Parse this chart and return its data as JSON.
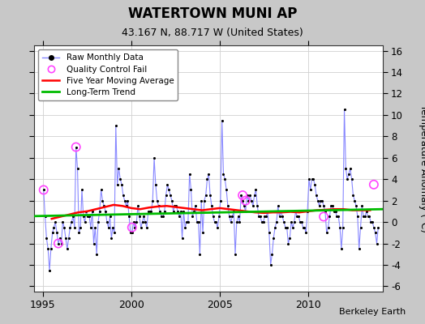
{
  "title": "WATERTOWN MUNI AP",
  "subtitle": "43.167 N, 88.717 W (United States)",
  "ylabel": "Temperature Anomaly (°C)",
  "credit": "Berkeley Earth",
  "xlim": [
    1994.5,
    2014.2
  ],
  "ylim": [
    -6.5,
    16.5
  ],
  "ytick_vals": [
    -6,
    -4,
    -2,
    0,
    2,
    4,
    6,
    8,
    10,
    12,
    14,
    16
  ],
  "xtick_vals": [
    1995,
    2000,
    2005,
    2010
  ],
  "bg_color": "#c8c8c8",
  "plot_bg_color": "#ffffff",
  "grid_color": "#d0d0d0",
  "raw_line_color": "#8888ff",
  "raw_dot_color": "#000000",
  "ma_color": "#ff0000",
  "trend_color": "#00bb00",
  "qc_fail_color": "#ff44ff",
  "raw_data_dates": [
    1995.042,
    1995.125,
    1995.208,
    1995.292,
    1995.375,
    1995.458,
    1995.542,
    1995.625,
    1995.708,
    1995.792,
    1995.875,
    1995.958,
    1996.042,
    1996.125,
    1996.208,
    1996.292,
    1996.375,
    1996.458,
    1996.542,
    1996.625,
    1996.708,
    1996.792,
    1996.875,
    1996.958,
    1997.042,
    1997.125,
    1997.208,
    1997.292,
    1997.375,
    1997.458,
    1997.542,
    1997.625,
    1997.708,
    1997.792,
    1997.875,
    1997.958,
    1998.042,
    1998.125,
    1998.208,
    1998.292,
    1998.375,
    1998.458,
    1998.542,
    1998.625,
    1998.708,
    1998.792,
    1998.875,
    1998.958,
    1999.042,
    1999.125,
    1999.208,
    1999.292,
    1999.375,
    1999.458,
    1999.542,
    1999.625,
    1999.708,
    1999.792,
    1999.875,
    1999.958,
    2000.042,
    2000.125,
    2000.208,
    2000.292,
    2000.375,
    2000.458,
    2000.542,
    2000.625,
    2000.708,
    2000.792,
    2000.875,
    2000.958,
    2001.042,
    2001.125,
    2001.208,
    2001.292,
    2001.375,
    2001.458,
    2001.542,
    2001.625,
    2001.708,
    2001.792,
    2001.875,
    2001.958,
    2002.042,
    2002.125,
    2002.208,
    2002.292,
    2002.375,
    2002.458,
    2002.542,
    2002.625,
    2002.708,
    2002.792,
    2002.875,
    2002.958,
    2003.042,
    2003.125,
    2003.208,
    2003.292,
    2003.375,
    2003.458,
    2003.542,
    2003.625,
    2003.708,
    2003.792,
    2003.875,
    2003.958,
    2004.042,
    2004.125,
    2004.208,
    2004.292,
    2004.375,
    2004.458,
    2004.542,
    2004.625,
    2004.708,
    2004.792,
    2004.875,
    2004.958,
    2005.042,
    2005.125,
    2005.208,
    2005.292,
    2005.375,
    2005.458,
    2005.542,
    2005.625,
    2005.708,
    2005.792,
    2005.875,
    2005.958,
    2006.042,
    2006.125,
    2006.208,
    2006.292,
    2006.375,
    2006.458,
    2006.542,
    2006.625,
    2006.708,
    2006.792,
    2006.875,
    2006.958,
    2007.042,
    2007.125,
    2007.208,
    2007.292,
    2007.375,
    2007.458,
    2007.542,
    2007.625,
    2007.708,
    2007.792,
    2007.875,
    2007.958,
    2008.042,
    2008.125,
    2008.208,
    2008.292,
    2008.375,
    2008.458,
    2008.542,
    2008.625,
    2008.708,
    2008.792,
    2008.875,
    2008.958,
    2009.042,
    2009.125,
    2009.208,
    2009.292,
    2009.375,
    2009.458,
    2009.542,
    2009.625,
    2009.708,
    2009.792,
    2009.875,
    2009.958,
    2010.042,
    2010.125,
    2010.208,
    2010.292,
    2010.375,
    2010.458,
    2010.542,
    2010.625,
    2010.708,
    2010.792,
    2010.875,
    2010.958,
    2011.042,
    2011.125,
    2011.208,
    2011.292,
    2011.375,
    2011.458,
    2011.542,
    2011.625,
    2011.708,
    2011.792,
    2011.875,
    2011.958,
    2012.042,
    2012.125,
    2012.208,
    2012.292,
    2012.375,
    2012.458,
    2012.542,
    2012.625,
    2012.708,
    2012.792,
    2012.875,
    2012.958,
    2013.042,
    2013.125,
    2013.208,
    2013.292,
    2013.375,
    2013.458,
    2013.542,
    2013.625,
    2013.708,
    2013.792,
    2013.875,
    2013.958
  ],
  "raw_data_values": [
    3.0,
    0.5,
    -1.5,
    -2.5,
    -4.5,
    -2.5,
    -1.0,
    -0.5,
    0.0,
    -1.0,
    -2.0,
    -1.5,
    -2.0,
    0.0,
    -0.5,
    -1.5,
    -2.5,
    -1.5,
    -0.5,
    0.0,
    0.5,
    -0.5,
    7.0,
    5.0,
    -1.0,
    -0.5,
    3.0,
    0.5,
    0.0,
    1.0,
    0.5,
    0.5,
    -0.5,
    1.0,
    -2.0,
    -0.5,
    -3.0,
    0.0,
    1.0,
    3.0,
    2.0,
    1.5,
    1.0,
    0.0,
    -0.5,
    0.5,
    -1.5,
    -0.5,
    -1.0,
    9.0,
    3.5,
    5.0,
    4.0,
    3.5,
    2.5,
    2.0,
    1.5,
    2.0,
    0.5,
    -1.0,
    -1.0,
    0.0,
    -0.5,
    0.0,
    1.5,
    0.5,
    -0.5,
    0.0,
    0.5,
    0.0,
    -0.5,
    1.0,
    1.0,
    1.0,
    2.0,
    6.0,
    3.5,
    2.0,
    1.5,
    1.0,
    0.5,
    0.5,
    1.0,
    2.5,
    3.5,
    3.0,
    2.5,
    2.0,
    1.0,
    1.5,
    1.5,
    1.0,
    0.5,
    1.0,
    -1.5,
    1.0,
    -0.5,
    0.0,
    0.0,
    4.5,
    3.0,
    0.5,
    1.0,
    1.5,
    0.0,
    0.0,
    -3.0,
    2.0,
    -1.0,
    2.0,
    2.5,
    4.0,
    4.5,
    2.5,
    1.5,
    0.5,
    0.0,
    0.0,
    -0.5,
    0.5,
    2.0,
    9.5,
    4.5,
    4.0,
    3.0,
    1.5,
    0.5,
    0.0,
    0.5,
    1.0,
    -3.0,
    0.0,
    0.5,
    0.0,
    2.5,
    2.0,
    1.5,
    1.0,
    2.5,
    2.0,
    2.5,
    2.0,
    1.5,
    2.5,
    3.0,
    1.5,
    0.5,
    0.5,
    0.0,
    0.0,
    0.5,
    0.5,
    1.0,
    -1.0,
    -4.0,
    -3.0,
    -1.5,
    -0.5,
    0.0,
    1.5,
    0.5,
    1.0,
    0.5,
    0.0,
    -0.5,
    -0.5,
    -2.0,
    -1.5,
    0.0,
    -0.5,
    0.0,
    1.0,
    0.5,
    0.5,
    0.0,
    0.0,
    -0.5,
    -0.5,
    -1.0,
    1.0,
    4.0,
    3.0,
    4.0,
    4.0,
    3.5,
    2.5,
    2.0,
    1.5,
    2.0,
    2.0,
    1.5,
    1.0,
    -1.0,
    -0.5,
    0.5,
    1.5,
    1.5,
    1.0,
    1.0,
    0.5,
    0.5,
    -0.5,
    -2.5,
    -0.5,
    10.5,
    5.0,
    4.0,
    4.5,
    5.0,
    4.0,
    2.5,
    2.0,
    1.5,
    0.5,
    -2.5,
    -0.5,
    1.5,
    0.5,
    0.5,
    1.0,
    0.5,
    0.5,
    0.0,
    0.0,
    -0.5,
    -1.0,
    -2.0,
    -0.5
  ],
  "qc_dates": [
    1995.042,
    1995.875,
    1996.875,
    2000.042,
    2006.292,
    2006.458,
    2010.875,
    2013.708
  ],
  "qc_values": [
    3.0,
    -2.0,
    7.0,
    -0.5,
    2.5,
    2.0,
    0.5,
    3.5
  ],
  "ma_dates": [
    1995.5,
    1996.0,
    1996.5,
    1997.0,
    1997.5,
    1998.0,
    1998.5,
    1999.0,
    1999.5,
    2000.0,
    2000.5,
    2001.0,
    2001.5,
    2002.0,
    2002.5,
    2003.0,
    2003.5,
    2004.0,
    2004.5,
    2005.0,
    2005.5,
    2006.0,
    2006.5,
    2007.0,
    2007.5,
    2008.0,
    2008.5,
    2009.0,
    2009.5,
    2010.0,
    2010.5,
    2011.0,
    2011.5,
    2012.0,
    2012.5,
    2013.0,
    2013.5
  ],
  "ma_values": [
    0.3,
    0.5,
    0.7,
    0.9,
    1.0,
    1.2,
    1.4,
    1.6,
    1.5,
    1.3,
    1.2,
    1.35,
    1.45,
    1.5,
    1.4,
    1.3,
    1.2,
    1.1,
    1.2,
    1.3,
    1.2,
    1.1,
    1.0,
    0.9,
    0.85,
    0.9,
    0.9,
    0.95,
    0.9,
    1.0,
    1.1,
    1.15,
    1.2,
    1.2,
    1.1,
    1.1,
    1.1
  ],
  "trend_x": [
    1994.5,
    2014.2
  ],
  "trend_y": [
    0.55,
    1.2
  ]
}
